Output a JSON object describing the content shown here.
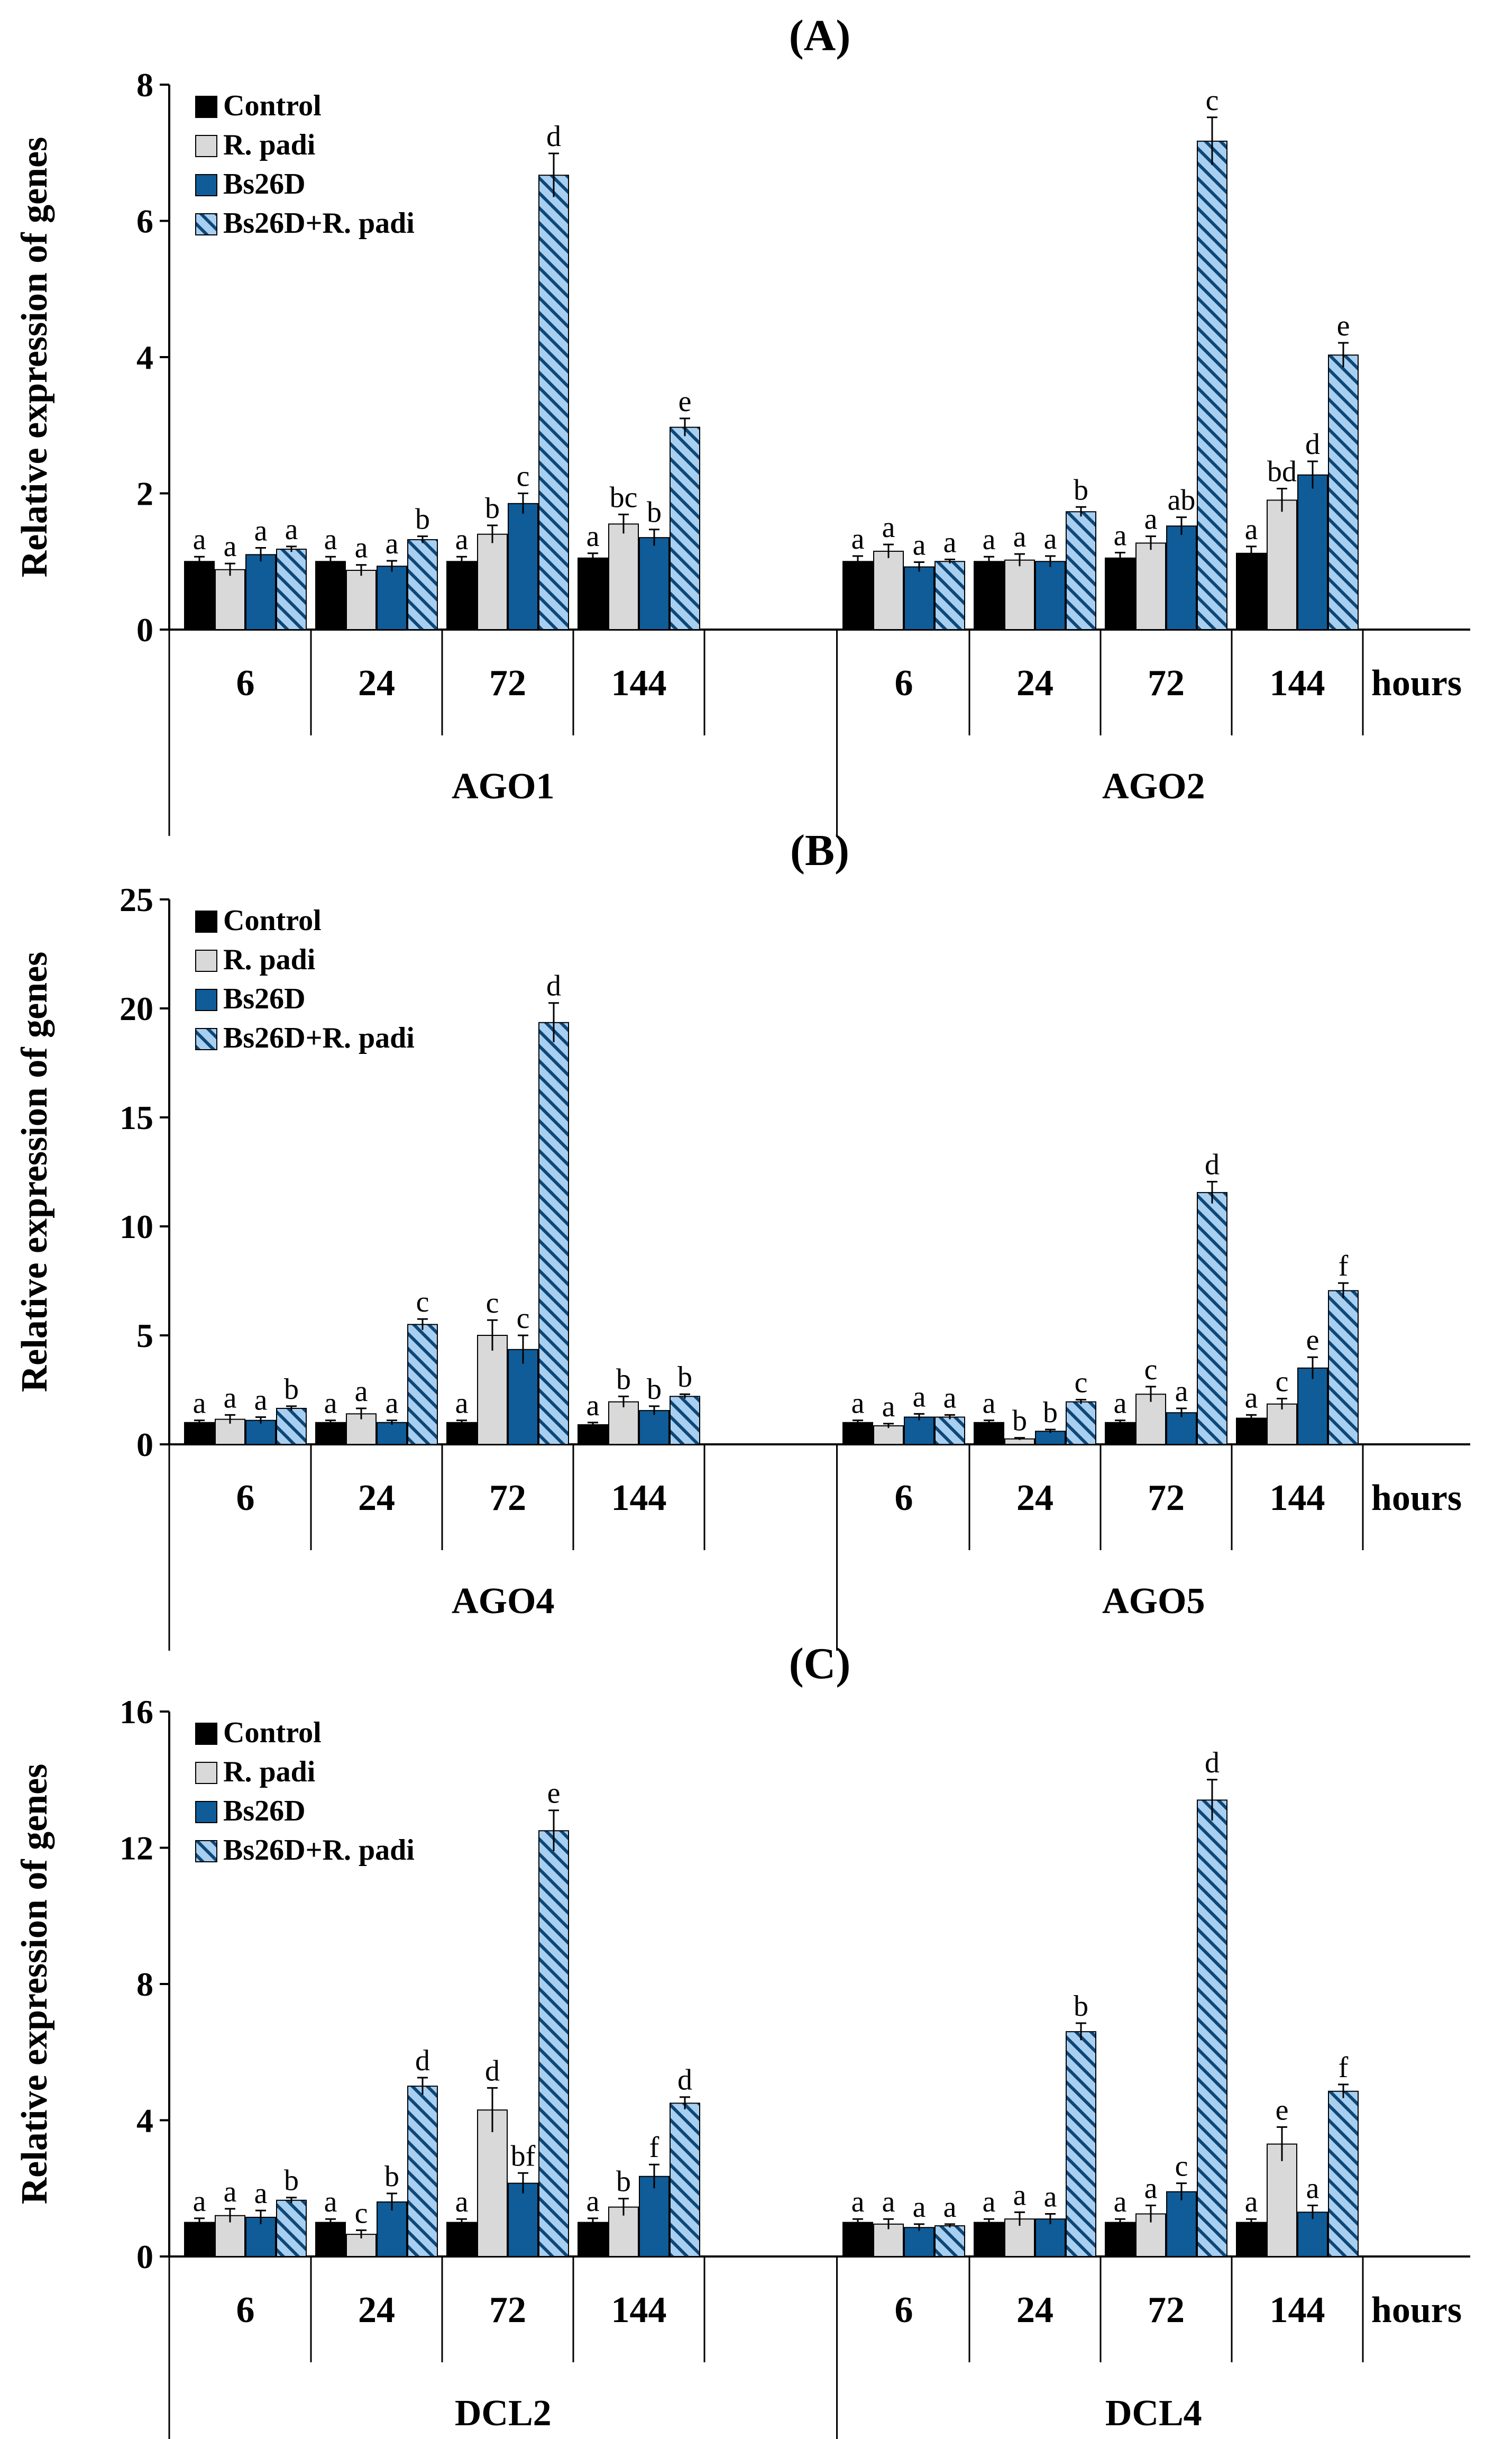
{
  "chart_data": [
    {
      "type": "bar",
      "panel": "(A)",
      "ylabel": "Relative expression of genes",
      "ylim": [
        0,
        8
      ],
      "yticks": [
        0,
        2,
        4,
        6,
        8
      ],
      "timepoints": [
        "6",
        "24",
        "72",
        "144"
      ],
      "time_unit": "hours",
      "legend": [
        "Control",
        "R. padi",
        "Bs26D",
        "Bs26D+R. padi"
      ],
      "genes": [
        {
          "name": "AGO1",
          "series": [
            {
              "name": "Control",
              "values": [
                1.0,
                1.0,
                1.0,
                1.05
              ],
              "errors": [
                0.07,
                0.07,
                0.07,
                0.07
              ],
              "letters": [
                "a",
                "a",
                "a",
                "a"
              ]
            },
            {
              "name": "R. padi",
              "values": [
                0.88,
                0.87,
                1.4,
                1.55
              ],
              "errors": [
                0.09,
                0.08,
                0.13,
                0.14
              ],
              "letters": [
                "a",
                "a",
                "b",
                "bc"
              ]
            },
            {
              "name": "Bs26D",
              "values": [
                1.1,
                0.93,
                1.85,
                1.35
              ],
              "errors": [
                0.1,
                0.08,
                0.15,
                0.12
              ],
              "letters": [
                "a",
                "a",
                "c",
                "b"
              ]
            },
            {
              "name": "Bs26D+R. padi",
              "values": [
                1.18,
                1.32,
                6.67,
                2.97
              ],
              "errors": [
                0.04,
                0.05,
                0.32,
                0.13
              ],
              "letters": [
                "a",
                "b",
                "d",
                "e"
              ]
            }
          ]
        },
        {
          "name": "AGO2",
          "series": [
            {
              "name": "Control",
              "values": [
                1.0,
                1.0,
                1.05,
                1.12
              ],
              "errors": [
                0.08,
                0.07,
                0.08,
                0.1
              ],
              "letters": [
                "a",
                "a",
                "a",
                "a"
              ]
            },
            {
              "name": "R. padi",
              "values": [
                1.15,
                1.02,
                1.27,
                1.9
              ],
              "errors": [
                0.1,
                0.09,
                0.1,
                0.17
              ],
              "letters": [
                "a",
                "a",
                "a",
                "bd"
              ]
            },
            {
              "name": "Bs26D",
              "values": [
                0.92,
                1.0,
                1.52,
                2.27
              ],
              "errors": [
                0.07,
                0.08,
                0.13,
                0.2
              ],
              "letters": [
                "a",
                "a",
                "ab",
                "d"
              ]
            },
            {
              "name": "Bs26D+R. padi",
              "values": [
                1.0,
                1.73,
                7.17,
                4.03
              ],
              "errors": [
                0.03,
                0.07,
                0.35,
                0.18
              ],
              "letters": [
                "a",
                "b",
                "c",
                "e"
              ]
            }
          ]
        }
      ]
    },
    {
      "type": "bar",
      "panel": "(B)",
      "ylabel": "Relative expression of genes",
      "ylim": [
        0,
        25
      ],
      "yticks": [
        0,
        5,
        10,
        15,
        20,
        25
      ],
      "timepoints": [
        "6",
        "24",
        "72",
        "144"
      ],
      "time_unit": "hours",
      "legend": [
        "Control",
        "R. padi",
        "Bs26D",
        "Bs26D+R. padi"
      ],
      "genes": [
        {
          "name": "AGO4",
          "series": [
            {
              "name": "Control",
              "values": [
                1.0,
                1.0,
                1.0,
                0.9
              ],
              "errors": [
                0.1,
                0.1,
                0.1,
                0.1
              ],
              "letters": [
                "a",
                "a",
                "a",
                "a"
              ]
            },
            {
              "name": "R. padi",
              "values": [
                1.15,
                1.4,
                5.0,
                1.95
              ],
              "errors": [
                0.2,
                0.25,
                0.7,
                0.25
              ],
              "letters": [
                "a",
                "a",
                "c",
                "b"
              ]
            },
            {
              "name": "Bs26D",
              "values": [
                1.1,
                1.0,
                4.35,
                1.55
              ],
              "errors": [
                0.15,
                0.1,
                0.65,
                0.2
              ],
              "letters": [
                "a",
                "a",
                "c",
                "b"
              ]
            },
            {
              "name": "Bs26D+R. padi",
              "values": [
                1.65,
                5.5,
                19.35,
                2.2
              ],
              "errors": [
                0.1,
                0.25,
                0.9,
                0.1
              ],
              "letters": [
                "b",
                "c",
                "d",
                "b"
              ]
            }
          ]
        },
        {
          "name": "AGO5",
          "series": [
            {
              "name": "Control",
              "values": [
                1.0,
                1.0,
                1.0,
                1.2
              ],
              "errors": [
                0.1,
                0.1,
                0.1,
                0.15
              ],
              "letters": [
                "a",
                "a",
                "a",
                "a"
              ]
            },
            {
              "name": "R. padi",
              "values": [
                0.85,
                0.25,
                2.3,
                1.85
              ],
              "errors": [
                0.1,
                0.05,
                0.35,
                0.25
              ],
              "letters": [
                "a",
                "b",
                "c",
                "c"
              ]
            },
            {
              "name": "Bs26D",
              "values": [
                1.25,
                0.6,
                1.45,
                3.5
              ],
              "errors": [
                0.15,
                0.08,
                0.2,
                0.5
              ],
              "letters": [
                "a",
                "b",
                "a",
                "e"
              ]
            },
            {
              "name": "Bs26D+R. padi",
              "values": [
                1.25,
                1.95,
                11.55,
                7.05
              ],
              "errors": [
                0.1,
                0.1,
                0.5,
                0.35
              ],
              "letters": [
                "a",
                "c",
                "d",
                "f"
              ]
            }
          ]
        }
      ]
    },
    {
      "type": "bar",
      "panel": "(C)",
      "ylabel": "Relative expression of genes",
      "ylim": [
        0,
        16
      ],
      "yticks": [
        0,
        4,
        8,
        12,
        16
      ],
      "timepoints": [
        "6",
        "24",
        "72",
        "144"
      ],
      "time_unit": "hours",
      "legend": [
        "Control",
        "R. padi",
        "Bs26D",
        "Bs26D+R. padi"
      ],
      "genes": [
        {
          "name": "DCL2",
          "series": [
            {
              "name": "Control",
              "values": [
                1.0,
                1.0,
                1.0,
                1.0
              ],
              "errors": [
                0.12,
                0.1,
                0.1,
                0.12
              ],
              "letters": [
                "a",
                "a",
                "a",
                "a"
              ]
            },
            {
              "name": "R. padi",
              "values": [
                1.2,
                0.65,
                4.3,
                1.45
              ],
              "errors": [
                0.2,
                0.12,
                0.65,
                0.25
              ],
              "letters": [
                "a",
                "c",
                "d",
                "b"
              ]
            },
            {
              "name": "Bs26D",
              "values": [
                1.15,
                1.6,
                2.15,
                2.35
              ],
              "errors": [
                0.2,
                0.25,
                0.3,
                0.35
              ],
              "letters": [
                "a",
                "b",
                "bf",
                "f"
              ]
            },
            {
              "name": "Bs26D+R. padi",
              "values": [
                1.65,
                5.0,
                12.5,
                4.5
              ],
              "errors": [
                0.08,
                0.25,
                0.6,
                0.18
              ],
              "letters": [
                "b",
                "d",
                "e",
                "d"
              ]
            }
          ]
        },
        {
          "name": "DCL4",
          "series": [
            {
              "name": "Control",
              "values": [
                1.0,
                1.0,
                1.0,
                1.0
              ],
              "errors": [
                0.1,
                0.1,
                0.1,
                0.1
              ],
              "letters": [
                "a",
                "a",
                "a",
                "a"
              ]
            },
            {
              "name": "R. padi",
              "values": [
                0.95,
                1.1,
                1.25,
                3.3
              ],
              "errors": [
                0.15,
                0.2,
                0.25,
                0.5
              ],
              "letters": [
                "a",
                "a",
                "a",
                "e"
              ]
            },
            {
              "name": "Bs26D",
              "values": [
                0.85,
                1.1,
                1.9,
                1.3
              ],
              "errors": [
                0.1,
                0.15,
                0.25,
                0.2
              ],
              "letters": [
                "a",
                "a",
                "c",
                "a"
              ]
            },
            {
              "name": "Bs26D+R. padi",
              "values": [
                0.9,
                6.6,
                13.4,
                4.85
              ],
              "errors": [
                0.05,
                0.25,
                0.6,
                0.2
              ],
              "letters": [
                "a",
                "b",
                "d",
                "f"
              ]
            }
          ]
        }
      ]
    }
  ]
}
